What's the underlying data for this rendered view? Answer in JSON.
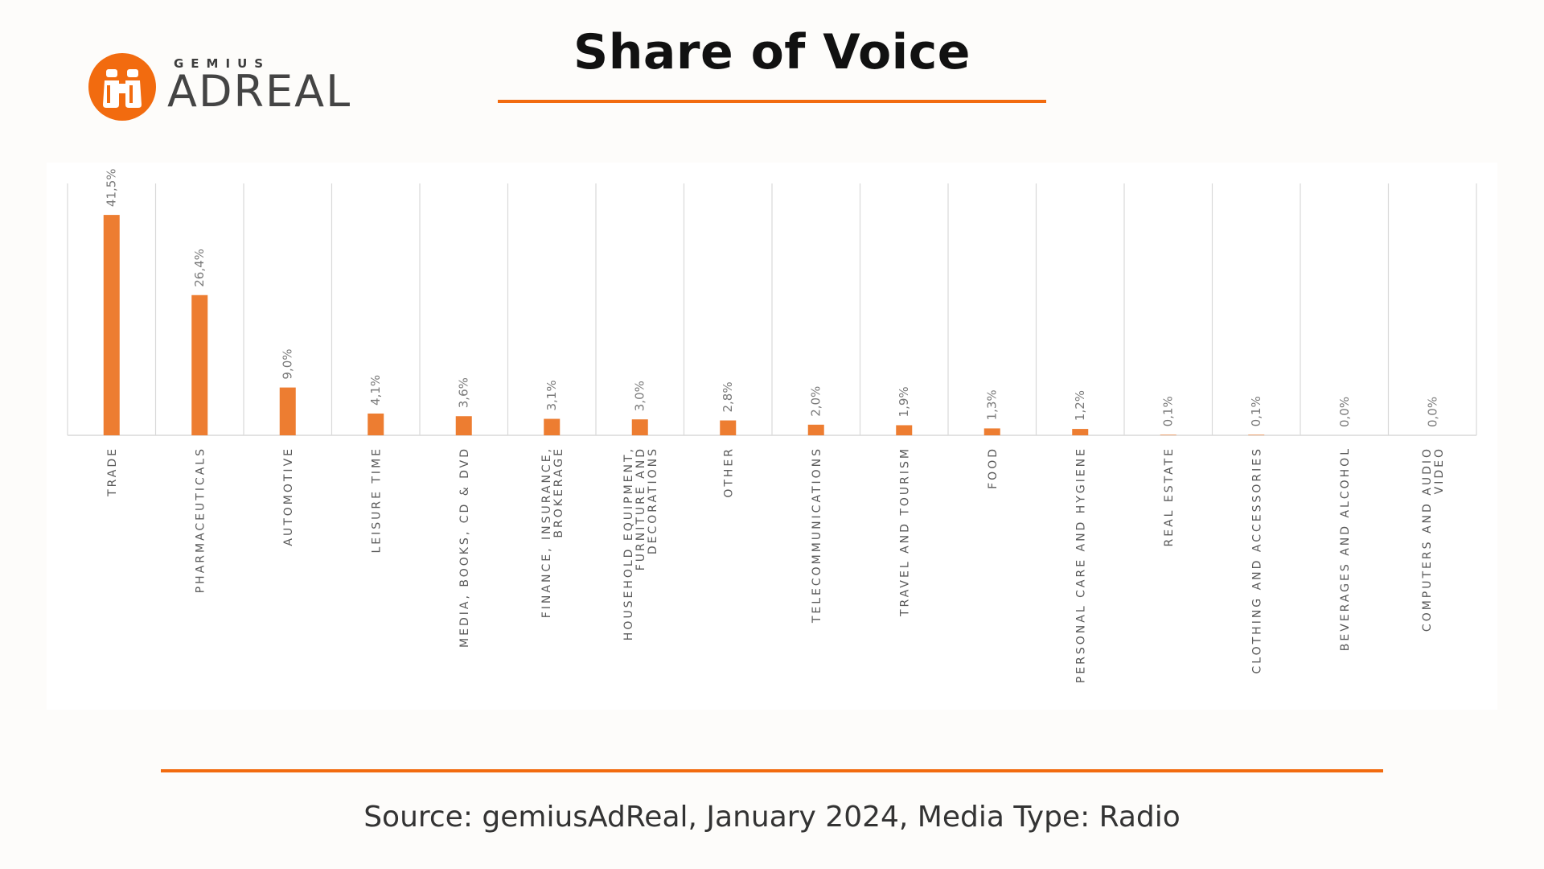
{
  "logo": {
    "sub": "GEMIUS",
    "main": "ADREAL",
    "icon": "binoculars-icon",
    "color": "#f26b0f"
  },
  "page_title": "Share of Voice",
  "source_note": "Source: gemiusAdReal, January 2024, Media Type: Radio",
  "accent_color": "#f26b0f",
  "bar_color": "#ed7d31",
  "chart_data": {
    "type": "bar",
    "categories": [
      "TRADE",
      "PHARMACEUTICALS",
      "AUTOMOTIVE",
      "LEISURE TIME",
      "MEDIA, BOOKS, CD & DVD",
      "FINANCE, INSURANCE, BROKERAGE",
      "HOUSEHOLD EQUIPMENT, FURNITURE AND DECORATIONS",
      "OTHER",
      "TELECOMMUNICATIONS",
      "TRAVEL AND TOURISM",
      "FOOD",
      "PERSONAL CARE AND HYGIENE",
      "REAL ESTATE",
      "CLOTHING AND ACCESSORIES",
      "BEVERAGES AND ALCOHOL",
      "COMPUTERS AND AUDIO VIDEO"
    ],
    "category_lines": [
      [
        "TRADE"
      ],
      [
        "PHARMACEUTICALS"
      ],
      [
        "AUTOMOTIVE"
      ],
      [
        "LEISURE TIME"
      ],
      [
        "MEDIA, BOOKS, CD & DVD"
      ],
      [
        "FINANCE, INSURANCE,",
        "BROKERAGE"
      ],
      [
        "HOUSEHOLD EQUIPMENT,",
        "FURNITURE AND",
        "DECORATIONS"
      ],
      [
        "OTHER"
      ],
      [
        "TELECOMMUNICATIONS"
      ],
      [
        "TRAVEL AND TOURISM"
      ],
      [
        "FOOD"
      ],
      [
        "PERSONAL CARE AND HYGIENE"
      ],
      [
        "REAL ESTATE"
      ],
      [
        "CLOTHING AND ACCESSORIES"
      ],
      [
        "BEVERAGES AND ALCOHOL"
      ],
      [
        "COMPUTERS AND AUDIO",
        "VIDEO"
      ]
    ],
    "values": [
      41.5,
      26.4,
      9.0,
      4.1,
      3.6,
      3.1,
      3.0,
      2.8,
      2.0,
      1.9,
      1.3,
      1.2,
      0.1,
      0.1,
      0.0,
      0.0
    ],
    "value_labels": [
      "41,5%",
      "26,4%",
      "9,0%",
      "4,1%",
      "3,6%",
      "3,1%",
      "3,0%",
      "2,8%",
      "2,0%",
      "1,9%",
      "1,3%",
      "1,2%",
      "0,1%",
      "0,1%",
      "0,0%",
      "0,0%"
    ],
    "unit": "%",
    "ylim": [
      0,
      45
    ],
    "grid": "vertical separators",
    "legend": "none"
  }
}
